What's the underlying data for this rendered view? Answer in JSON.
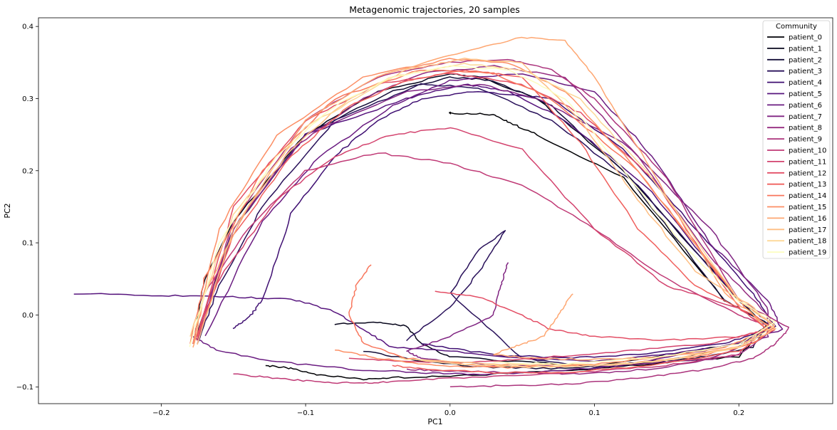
{
  "chart_data": {
    "type": "line",
    "title": "Metagenomic trajectories, 20 samples",
    "xlabel": "PC1",
    "ylabel": "PC2",
    "xlim": [
      -0.285,
      0.265
    ],
    "ylim": [
      -0.123,
      0.412
    ],
    "xticks": [
      -0.2,
      -0.1,
      0.0,
      0.1,
      0.2
    ],
    "xtick_labels": [
      "−0.2",
      "−0.1",
      "0.0",
      "0.1",
      "0.2"
    ],
    "yticks": [
      -0.1,
      0.0,
      0.1,
      0.2,
      0.3,
      0.4
    ],
    "ytick_labels": [
      "−0.1",
      "0.0",
      "0.1",
      "0.2",
      "0.3",
      "0.4"
    ],
    "grid": false,
    "legend": {
      "title": "Community",
      "position": "top-right"
    },
    "colormap": "magma",
    "series": [
      {
        "name": "patient_0",
        "color": "#000004",
        "x": [
          -0.128,
          -0.11,
          -0.09,
          -0.06,
          -0.04,
          0.0,
          0.05,
          0.1,
          0.15,
          0.2,
          0.22,
          0.19,
          0.12,
          0.06,
          0.04,
          0.03,
          0.0,
          0.0
        ],
        "y": [
          -0.07,
          -0.074,
          -0.084,
          -0.089,
          -0.087,
          -0.085,
          -0.08,
          -0.075,
          -0.066,
          -0.058,
          -0.012,
          0.02,
          0.19,
          0.25,
          0.268,
          0.278,
          0.28,
          0.28
        ]
      },
      {
        "name": "patient_1",
        "color": "#07061c",
        "x": [
          -0.08,
          -0.05,
          -0.03,
          -0.02,
          0.0,
          0.05,
          0.1,
          0.15,
          0.2,
          0.22,
          0.2,
          0.12,
          0.06,
          0.02,
          0.0,
          -0.05,
          -0.1,
          -0.15,
          -0.17,
          -0.178
        ],
        "y": [
          -0.013,
          -0.01,
          -0.015,
          -0.04,
          -0.058,
          -0.065,
          -0.07,
          -0.055,
          -0.04,
          -0.016,
          0.02,
          0.2,
          0.3,
          0.33,
          0.334,
          0.31,
          0.25,
          0.13,
          0.05,
          -0.04
        ]
      },
      {
        "name": "patient_2",
        "color": "#150e38",
        "x": [
          -0.06,
          -0.02,
          0.02,
          0.07,
          0.12,
          0.17,
          0.21,
          0.22,
          0.19,
          0.12,
          0.07,
          0.03,
          0.0,
          -0.04,
          -0.1,
          -0.15,
          -0.175
        ],
        "y": [
          -0.05,
          -0.064,
          -0.072,
          -0.074,
          -0.07,
          -0.06,
          -0.045,
          -0.012,
          0.02,
          0.2,
          0.29,
          0.325,
          0.33,
          0.31,
          0.25,
          0.12,
          -0.025
        ]
      },
      {
        "name": "patient_3",
        "color": "#29115a",
        "x": [
          -0.03,
          0.0,
          0.02,
          0.038,
          0.02,
          0.0,
          0.05,
          0.1,
          0.15,
          0.2,
          0.225,
          0.2,
          0.13,
          0.07,
          0.02,
          -0.02,
          -0.08,
          -0.13,
          -0.16,
          -0.175
        ],
        "y": [
          -0.035,
          0.01,
          0.06,
          0.117,
          0.09,
          0.03,
          -0.06,
          -0.072,
          -0.062,
          -0.045,
          -0.015,
          0.02,
          0.18,
          0.27,
          0.315,
          0.32,
          0.27,
          0.15,
          0.04,
          -0.04
        ]
      },
      {
        "name": "patient_4",
        "color": "#3f0f72",
        "x": [
          -0.15,
          -0.14,
          -0.13,
          -0.11,
          -0.08,
          -0.05,
          -0.02,
          0.02,
          0.07,
          0.12,
          0.17,
          0.21,
          0.225,
          0.19,
          0.13,
          0.08,
          0.03,
          -0.02
        ],
        "y": [
          -0.018,
          -0.005,
          0.02,
          0.14,
          0.22,
          0.27,
          0.3,
          0.31,
          0.3,
          0.23,
          0.12,
          0.03,
          -0.015,
          -0.04,
          -0.055,
          -0.06,
          -0.055,
          -0.04
        ]
      },
      {
        "name": "patient_5",
        "color": "#56147d",
        "x": [
          -0.26,
          -0.2,
          -0.15,
          -0.11,
          -0.08,
          -0.06,
          -0.04,
          0.0,
          0.05,
          0.1,
          0.15,
          0.2,
          0.225,
          0.2,
          0.14,
          0.08,
          0.04,
          0.01,
          -0.03,
          -0.1,
          -0.15,
          -0.175
        ],
        "y": [
          0.03,
          0.027,
          0.025,
          0.022,
          0.005,
          -0.02,
          -0.045,
          -0.05,
          -0.06,
          -0.065,
          -0.055,
          -0.04,
          -0.015,
          0.02,
          0.17,
          0.27,
          0.31,
          0.32,
          0.3,
          0.25,
          0.12,
          -0.03
        ]
      },
      {
        "name": "patient_6",
        "color": "#6a1c81",
        "x": [
          -0.17,
          -0.13,
          -0.09,
          -0.04,
          0.0,
          0.05,
          0.1,
          0.14,
          0.18,
          0.22,
          0.23,
          0.2,
          0.12,
          0.06,
          0.02,
          -0.02,
          -0.07,
          -0.12,
          -0.16,
          -0.178
        ],
        "y": [
          -0.03,
          0.13,
          0.22,
          0.29,
          0.325,
          0.335,
          0.31,
          0.22,
          0.1,
          0.02,
          -0.02,
          -0.04,
          -0.07,
          -0.08,
          -0.082,
          -0.08,
          -0.075,
          -0.065,
          -0.05,
          -0.03
        ]
      },
      {
        "name": "patient_7",
        "color": "#802582",
        "x": [
          0.04,
          0.035,
          0.03,
          0.0,
          -0.03,
          -0.02,
          0.03,
          0.08,
          0.13,
          0.18,
          0.22,
          0.22,
          0.18,
          0.12,
          0.06,
          0.02,
          -0.03,
          -0.1,
          -0.15,
          -0.175
        ],
        "y": [
          0.072,
          0.04,
          0.0,
          -0.03,
          -0.05,
          -0.06,
          -0.07,
          -0.072,
          -0.068,
          -0.06,
          -0.03,
          0.01,
          0.12,
          0.24,
          0.3,
          0.32,
          0.31,
          0.25,
          0.12,
          -0.035
        ]
      },
      {
        "name": "patient_8",
        "color": "#952c80",
        "x": [
          -0.175,
          -0.15,
          -0.11,
          -0.06,
          -0.02,
          0.03,
          0.08,
          0.13,
          0.18,
          0.22,
          0.225,
          0.2,
          0.14,
          0.09,
          0.05,
          0.0,
          -0.03
        ],
        "y": [
          -0.04,
          0.12,
          0.23,
          0.3,
          0.335,
          0.345,
          0.33,
          0.22,
          0.08,
          0.0,
          -0.02,
          -0.055,
          -0.075,
          -0.082,
          -0.08,
          -0.078,
          -0.075
        ]
      },
      {
        "name": "patient_9",
        "color": "#ab337c",
        "x": [
          0.0,
          0.04,
          0.09,
          0.14,
          0.18,
          0.21,
          0.225,
          0.235,
          0.2,
          0.15,
          0.1,
          0.07,
          0.04,
          0.0,
          -0.05,
          -0.1,
          -0.15,
          -0.175
        ],
        "y": [
          -0.1,
          -0.098,
          -0.095,
          -0.085,
          -0.075,
          -0.06,
          -0.04,
          -0.018,
          0.02,
          0.19,
          0.3,
          0.34,
          0.355,
          0.35,
          0.33,
          0.27,
          0.13,
          -0.03
        ]
      },
      {
        "name": "patient_10",
        "color": "#c03a76",
        "x": [
          -0.15,
          -0.12,
          -0.09,
          -0.06,
          -0.04,
          0.0,
          0.05,
          0.1,
          0.15,
          0.2,
          0.22,
          0.2,
          0.15,
          0.1,
          0.05,
          0.0,
          -0.05,
          -0.1,
          -0.14,
          -0.17,
          -0.178
        ],
        "y": [
          -0.082,
          -0.088,
          -0.093,
          -0.095,
          -0.092,
          -0.088,
          -0.083,
          -0.078,
          -0.07,
          -0.055,
          -0.015,
          0.0,
          0.05,
          0.12,
          0.18,
          0.21,
          0.225,
          0.2,
          0.12,
          0.03,
          -0.04
        ]
      },
      {
        "name": "patient_11",
        "color": "#d3436e",
        "x": [
          -0.178,
          -0.16,
          -0.12,
          -0.08,
          -0.04,
          0.0,
          0.05,
          0.1,
          0.15,
          0.2,
          0.22,
          0.18,
          0.12,
          0.06,
          0.02,
          -0.03,
          -0.07
        ],
        "y": [
          -0.04,
          0.05,
          0.16,
          0.22,
          0.25,
          0.26,
          0.23,
          0.12,
          0.04,
          0.01,
          -0.02,
          -0.04,
          -0.05,
          -0.06,
          -0.065,
          -0.065,
          -0.06
        ]
      },
      {
        "name": "patient_12",
        "color": "#e34e65",
        "x": [
          -0.01,
          0.02,
          0.05,
          0.07,
          0.1,
          0.15,
          0.2,
          0.22,
          0.2,
          0.14,
          0.09,
          0.05,
          0.0,
          -0.05,
          -0.1,
          -0.15,
          -0.175
        ],
        "y": [
          0.033,
          0.025,
          0.0,
          -0.02,
          -0.03,
          -0.035,
          -0.03,
          -0.02,
          0.01,
          0.19,
          0.28,
          0.32,
          0.335,
          0.32,
          0.27,
          0.15,
          -0.03
        ]
      },
      {
        "name": "patient_13",
        "color": "#f0605d",
        "x": [
          -0.175,
          -0.15,
          -0.11,
          -0.07,
          -0.03,
          0.01,
          0.05,
          0.09,
          0.13,
          0.17,
          0.21,
          0.225,
          0.2,
          0.14,
          0.08,
          0.03,
          -0.02,
          -0.04
        ],
        "y": [
          -0.035,
          0.11,
          0.22,
          0.29,
          0.325,
          0.34,
          0.33,
          0.24,
          0.12,
          0.04,
          0.0,
          -0.02,
          -0.05,
          -0.07,
          -0.08,
          -0.08,
          -0.075,
          -0.07
        ]
      },
      {
        "name": "patient_14",
        "color": "#f8765c",
        "x": [
          -0.055,
          -0.065,
          -0.07,
          -0.06,
          -0.03,
          0.02,
          0.07,
          0.12,
          0.17,
          0.21,
          0.225,
          0.2,
          0.13,
          0.07,
          0.03,
          -0.02,
          -0.08,
          -0.13,
          -0.17,
          -0.18
        ],
        "y": [
          0.07,
          0.04,
          0.0,
          -0.04,
          -0.06,
          -0.07,
          -0.072,
          -0.068,
          -0.058,
          -0.04,
          -0.015,
          0.02,
          0.2,
          0.3,
          0.335,
          0.34,
          0.3,
          0.2,
          0.05,
          -0.04
        ]
      },
      {
        "name": "patient_15",
        "color": "#fc8e64",
        "x": [
          -0.08,
          -0.05,
          -0.01,
          0.04,
          0.09,
          0.14,
          0.19,
          0.22,
          0.2,
          0.13,
          0.08,
          0.04,
          0.0,
          -0.06,
          -0.12,
          -0.16,
          -0.178
        ],
        "y": [
          -0.048,
          -0.06,
          -0.07,
          -0.073,
          -0.07,
          -0.06,
          -0.045,
          -0.02,
          0.02,
          0.2,
          0.31,
          0.35,
          0.355,
          0.33,
          0.25,
          0.12,
          -0.04
        ]
      },
      {
        "name": "patient_16",
        "color": "#fea772",
        "x": [
          0.085,
          0.075,
          0.065,
          0.05,
          0.03,
          0.06,
          0.1,
          0.15,
          0.2,
          0.22,
          0.19,
          0.14,
          0.1,
          0.08,
          0.05,
          0.0,
          -0.05,
          -0.1,
          -0.14,
          -0.17,
          -0.178
        ],
        "y": [
          0.03,
          0.0,
          -0.03,
          -0.04,
          -0.055,
          -0.06,
          -0.062,
          -0.058,
          -0.045,
          -0.015,
          0.03,
          0.2,
          0.33,
          0.38,
          0.385,
          0.36,
          0.33,
          0.27,
          0.15,
          0.03,
          -0.045
        ]
      },
      {
        "name": "patient_17",
        "color": "#febf84",
        "x": [
          -0.175,
          -0.15,
          -0.11,
          -0.07,
          -0.03,
          0.01,
          0.05,
          0.09,
          0.13,
          0.17,
          0.21,
          0.225,
          0.2,
          0.14,
          0.08,
          0.03,
          -0.02
        ],
        "y": [
          -0.04,
          0.12,
          0.23,
          0.3,
          0.34,
          0.355,
          0.35,
          0.27,
          0.16,
          0.06,
          0.01,
          -0.02,
          -0.045,
          -0.065,
          -0.07,
          -0.068,
          -0.062
        ]
      },
      {
        "name": "patient_18",
        "color": "#fdd898",
        "x": [
          -0.035,
          0.01,
          0.06,
          0.11,
          0.16,
          0.2,
          0.225,
          0.2,
          0.14,
          0.09,
          0.05,
          0.01,
          -0.04,
          -0.1,
          -0.15,
          -0.18
        ],
        "y": [
          -0.06,
          -0.068,
          -0.072,
          -0.07,
          -0.06,
          -0.045,
          -0.015,
          0.02,
          0.19,
          0.3,
          0.34,
          0.348,
          0.33,
          0.26,
          0.14,
          -0.03
        ]
      },
      {
        "name": "patient_19",
        "color": "#fcfdbf",
        "x": [
          -0.18,
          -0.16,
          -0.12,
          -0.08,
          -0.04,
          0.0,
          0.04,
          0.08,
          0.12,
          0.16,
          0.2,
          0.225,
          0.2,
          0.14,
          0.08,
          0.03
        ],
        "y": [
          -0.045,
          0.1,
          0.22,
          0.29,
          0.33,
          0.345,
          0.34,
          0.3,
          0.2,
          0.1,
          0.02,
          -0.01,
          -0.04,
          -0.06,
          -0.068,
          -0.066
        ]
      }
    ]
  }
}
